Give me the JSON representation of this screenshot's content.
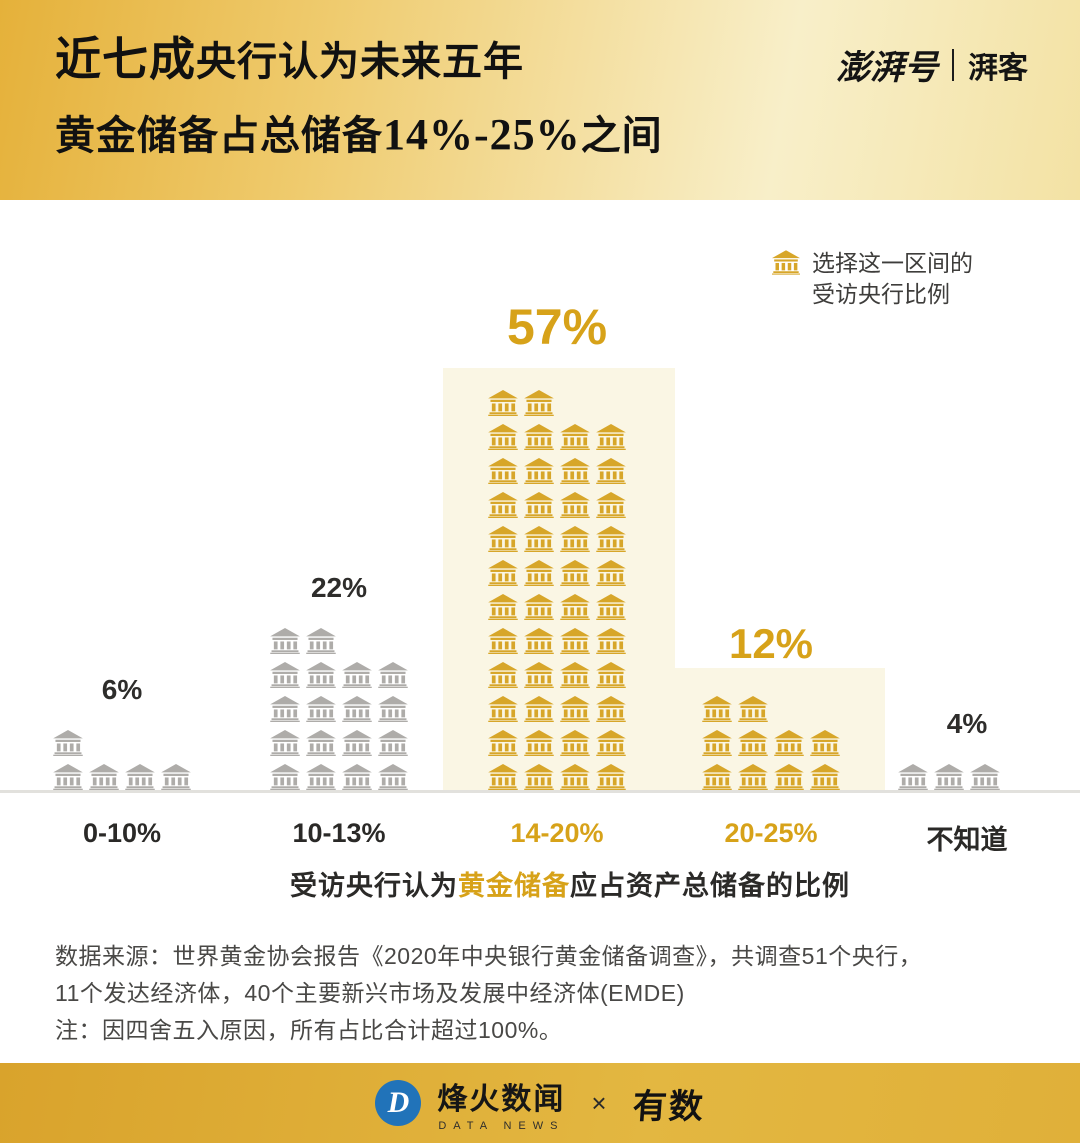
{
  "header": {
    "title_line1_emphasis": "近七成",
    "title_line1_rest": "央行认为未来五年",
    "title_line2_part1": "黄金储备占总储备",
    "title_line2_numbers": "14%-25%",
    "title_line2_part2": "之间",
    "brand_left": "澎湃号",
    "brand_right": "湃客"
  },
  "legend": {
    "icon": "bank-icon",
    "line1": "选择这一区间的",
    "line2": "受访央行比例"
  },
  "chart_data": {
    "type": "bar",
    "subtype": "pictogram",
    "title": "受访央行认为黄金储备应占资产总储备的比例",
    "categories": [
      "0-10%",
      "10-13%",
      "14-20%",
      "20-25%",
      "不知道"
    ],
    "values": [
      6,
      22,
      57,
      12,
      4
    ],
    "labels": [
      "6%",
      "22%",
      "57%",
      "12%",
      "4%"
    ],
    "highlighted": [
      false,
      false,
      true,
      true,
      false
    ],
    "icon_counts": [
      5,
      18,
      46,
      10,
      3
    ],
    "icons_per_row": 4,
    "ylim": [
      0,
      60
    ],
    "legend_position": "top-right",
    "colors": {
      "highlight_icon": "#D7A629",
      "gray_icon": "#AEACA9",
      "highlight_bg": "#FAF6E4",
      "highlight_label": "#D7A219",
      "normal_label": "#2E2D2B"
    },
    "xlabel_prefix": "受访央行认为",
    "xlabel_highlight": "黄金储备",
    "xlabel_suffix": "应占资产总储备的比例"
  },
  "source": {
    "line1": "数据来源：世界黄金协会报告《2020年中央银行黄金储备调查》，共调查51个央行，",
    "line2": "11个发达经济体，40个主要新兴市场及发展中经济体(EMDE)",
    "line3": "注：因四舍五入原因，所有占比合计超过100%。"
  },
  "footer": {
    "logo_letter": "D",
    "brand1": "烽火数闻",
    "brand1_sub": "DATA NEWS",
    "separator": "×",
    "brand2": "有数"
  }
}
